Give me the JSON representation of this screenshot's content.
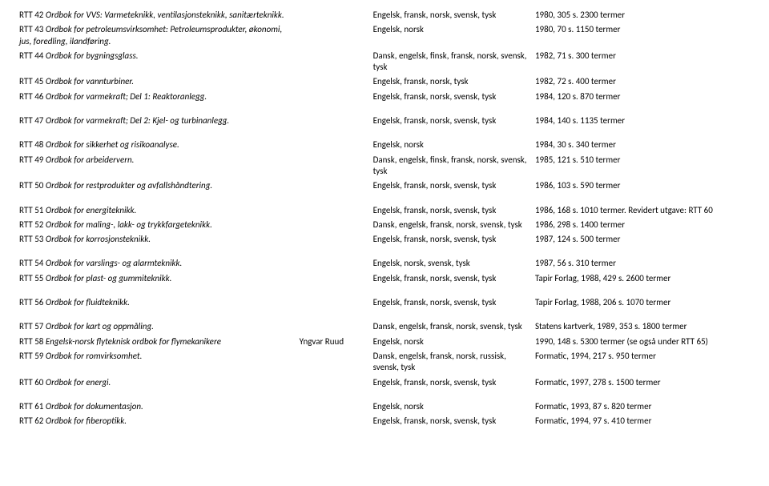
{
  "groups": [
    [
      {
        "code": "RTT 42",
        "title": "Ordbok for VVS: Varmeteknikk, ventilasjonsteknikk, sanitærteknikk.",
        "author": "",
        "lang": "Engelsk, fransk, norsk, svensk, tysk",
        "info": "1980, 305 s. 2300 termer"
      },
      {
        "code": "RTT 43",
        "title": "Ordbok for petroleumsvirksomhet: Petroleumsprodukter, økonomi, jus, foredling, ilandføring.",
        "author": "",
        "lang": "Engelsk, norsk",
        "info": "1980, 70 s. 1150 termer"
      },
      {
        "code": "RTT 44",
        "title": "Ordbok for bygningsglass.",
        "author": "",
        "lang": "Dansk, engelsk, finsk, fransk, norsk, svensk, tysk",
        "info": "1982, 71 s. 300 termer"
      },
      {
        "code": "RTT 45",
        "title": "Ordbok for vannturbiner.",
        "author": "",
        "lang": "Engelsk, fransk, norsk, tysk",
        "info": "1982, 72 s. 400 termer"
      },
      {
        "code": "RTT 46",
        "title": "Ordbok for varmekraft; Del 1: Reaktoranlegg.",
        "author": "",
        "lang": "Engelsk, fransk, norsk, svensk, tysk",
        "info": "1984, 120 s. 870 termer"
      }
    ],
    [
      {
        "code": "RTT 47",
        "title": "Ordbok for varmekraft; Del 2: Kjel- og turbinanlegg.",
        "author": "",
        "lang": "Engelsk, fransk, norsk, svensk, tysk",
        "info": "1984, 140 s. 1135 termer"
      }
    ],
    [
      {
        "code": "RTT 48",
        "title": "Ordbok for sikkerhet og risikoanalyse.",
        "author": "",
        "lang": "Engelsk, norsk",
        "info": "1984, 30 s. 340 termer"
      },
      {
        "code": "RTT 49",
        "title": "Ordbok for arbeidervern.",
        "author": "",
        "lang": "Dansk, engelsk, finsk, fransk, norsk, svensk, tysk",
        "info": "1985, 121 s. 510 termer"
      },
      {
        "code": "RTT 50",
        "title": "Ordbok for restprodukter og avfallshåndtering.",
        "author": "",
        "lang": "Engelsk, fransk, norsk, svensk, tysk",
        "info": "1986, 103 s. 590 termer"
      }
    ],
    [
      {
        "code": "RTT 51",
        "title": "Ordbok for energiteknikk.",
        "author": "",
        "lang": "Engelsk, fransk, norsk, svensk, tysk",
        "info": "1986, 168 s. 1010 termer. Revidert utgave: RTT 60"
      },
      {
        "code": "RTT 52",
        "title": "Ordbok for maling-, lakk- og trykkfargeteknikk.",
        "author": "",
        "lang": "Dansk, engelsk, fransk, norsk, svensk, tysk",
        "info": "1986, 298 s. 1400 termer"
      },
      {
        "code": "RTT 53",
        "title": "Ordbok for korrosjonsteknikk.",
        "author": "",
        "lang": "Engelsk, fransk, norsk, svensk, tysk",
        "info": "1987, 124 s. 500 termer"
      }
    ],
    [
      {
        "code": "RTT 54",
        "title": "Ordbok for varslings- og alarmteknikk.",
        "author": "",
        "lang": "Engelsk, norsk, svensk, tysk",
        "info": "1987, 56 s. 310 termer"
      },
      {
        "code": "RTT 55",
        "title": "Ordbok for plast- og gummiteknikk.",
        "author": "",
        "lang": "Engelsk, fransk, norsk, svensk, tysk",
        "info": "Tapir Forlag, 1988, 429 s. 2600 termer"
      }
    ],
    [
      {
        "code": "RTT 56",
        "title": "Ordbok for fluidteknikk.",
        "author": "",
        "lang": "Engelsk, fransk, norsk, svensk, tysk",
        "info": "Tapir Forlag, 1988, 206 s. 1070 termer"
      }
    ],
    [
      {
        "code": "RTT 57",
        "title": "Ordbok for kart og oppmåling.",
        "author": "",
        "lang": "Dansk, engelsk, fransk, norsk, svensk, tysk",
        "info": "Statens kartverk, 1989, 353 s. 1800 termer"
      },
      {
        "code": "RTT 58",
        "title": "Engelsk-norsk flyteknisk ordbok for flymekanikere",
        "author": "Yngvar Ruud",
        "lang": "Engelsk, norsk",
        "info": "1990, 148 s. 5300 termer (se også under RTT 65)"
      },
      {
        "code": "RTT 59",
        "title": "Ordbok for romvirksomhet.",
        "author": "",
        "lang": "Dansk, engelsk, fransk, norsk, russisk, svensk, tysk",
        "info": "Formatic, 1994, 217 s. 950 termer"
      },
      {
        "code": "RTT 60",
        "title": "Ordbok for energi.",
        "author": "",
        "lang": "Engelsk, fransk, norsk, svensk, tysk",
        "info": "Formatic, 1997, 278 s. 1500 termer"
      }
    ],
    [
      {
        "code": "RTT 61",
        "title": "Ordbok for dokumentasjon.",
        "author": "",
        "lang": "Engelsk, norsk",
        "info": "Formatic, 1993, 87 s. 820 termer"
      },
      {
        "code": "RTT 62",
        "title": "Ordbok for fiberoptikk.",
        "author": "",
        "lang": "Engelsk, fransk, norsk, svensk, tysk",
        "info": "Formatic, 1994, 97 s. 410 termer"
      }
    ]
  ]
}
